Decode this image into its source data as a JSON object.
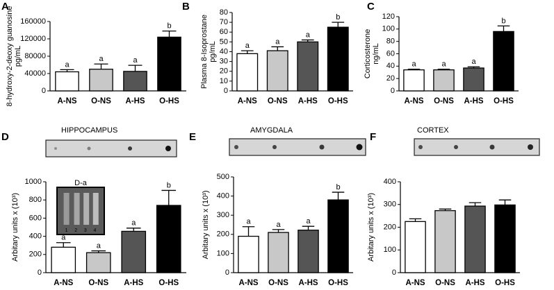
{
  "chart_data": [
    {
      "type": "bar",
      "panel": "A",
      "ylabel": [
        "8-hydroxy-2-deoxy guanosine",
        "pg/mL"
      ],
      "categories": [
        "A-NS",
        "O-NS",
        "A-HS",
        "O-HS"
      ],
      "values": [
        44000,
        50000,
        45000,
        124000
      ],
      "errors": [
        5000,
        12000,
        14000,
        14000
      ],
      "labels": [
        "a",
        "a",
        "a",
        "b"
      ],
      "colors": [
        "#ffffff",
        "#c8c8c8",
        "#555555",
        "#000000"
      ],
      "ylim": [
        0,
        160000
      ],
      "yticks": [
        0,
        40000,
        80000,
        120000,
        160000
      ]
    },
    {
      "type": "bar",
      "panel": "B",
      "ylabel": [
        "Plasma 8-Isoprostane",
        "pg/mL"
      ],
      "categories": [
        "A-NS",
        "O-NS",
        "A-HS",
        "O-HS"
      ],
      "values": [
        38,
        41,
        50,
        65
      ],
      "errors": [
        3,
        4,
        2,
        5
      ],
      "labels": [
        "a",
        "a",
        "a",
        "b"
      ],
      "colors": [
        "#ffffff",
        "#c8c8c8",
        "#555555",
        "#000000"
      ],
      "ylim": [
        0,
        80
      ],
      "yticks": [
        0,
        10,
        20,
        30,
        40,
        50,
        60,
        70,
        80
      ]
    },
    {
      "type": "bar",
      "panel": "C",
      "ylabel": [
        "Corticosterone",
        "ng/mL"
      ],
      "categories": [
        "A-NS",
        "O-NS",
        "A-HS",
        "O-HS"
      ],
      "values": [
        34,
        34,
        37,
        96
      ],
      "errors": [
        1,
        1,
        2,
        9
      ],
      "labels": [
        "a",
        "a",
        "a",
        "b"
      ],
      "colors": [
        "#ffffff",
        "#c8c8c8",
        "#555555",
        "#000000"
      ],
      "ylim": [
        0,
        120
      ],
      "yticks": [
        0,
        20,
        40,
        60,
        80,
        100,
        120
      ]
    },
    {
      "type": "bar",
      "panel": "D",
      "title": "HIPPOCAMPUS",
      "ylabel": [
        "Arbitary units x (10³)"
      ],
      "inset": {
        "label": "D-a",
        "lanes": [
          "1",
          "2",
          "3",
          "4"
        ]
      },
      "categories": [
        "A-NS",
        "O-NS",
        "A-HS",
        "O-HS"
      ],
      "values": [
        280,
        220,
        455,
        740
      ],
      "errors": [
        50,
        20,
        35,
        165
      ],
      "labels": [
        "a",
        "a",
        "a",
        "b"
      ],
      "colors": [
        "#ffffff",
        "#c8c8c8",
        "#555555",
        "#000000"
      ],
      "ylim": [
        0,
        1000
      ],
      "yticks": [
        0,
        200,
        400,
        600,
        800,
        1000
      ]
    },
    {
      "type": "bar",
      "panel": "E",
      "title": "AMYGDALA",
      "ylabel": [
        "Arbitary units x (10³)"
      ],
      "categories": [
        "A-NS",
        "O-NS",
        "A-HS",
        "O-HS"
      ],
      "values": [
        190,
        210,
        222,
        380
      ],
      "errors": [
        50,
        15,
        20,
        40
      ],
      "labels": [
        "a",
        "a",
        "a",
        "b"
      ],
      "colors": [
        "#ffffff",
        "#c8c8c8",
        "#555555",
        "#000000"
      ],
      "ylim": [
        0,
        500
      ],
      "yticks": [
        0,
        100,
        200,
        300,
        400,
        500
      ]
    },
    {
      "type": "bar",
      "panel": "F",
      "title": "CORTEX",
      "ylabel": [
        "Arbitary units x (10³)"
      ],
      "categories": [
        "A-NS",
        "O-NS",
        "A-HS",
        "O-HS"
      ],
      "values": [
        225,
        273,
        293,
        298
      ],
      "errors": [
        12,
        7,
        15,
        22
      ],
      "colors": [
        "#ffffff",
        "#c8c8c8",
        "#555555",
        "#000000"
      ],
      "ylim": [
        0,
        400
      ],
      "yticks": [
        0,
        100,
        200,
        300,
        400
      ]
    }
  ]
}
